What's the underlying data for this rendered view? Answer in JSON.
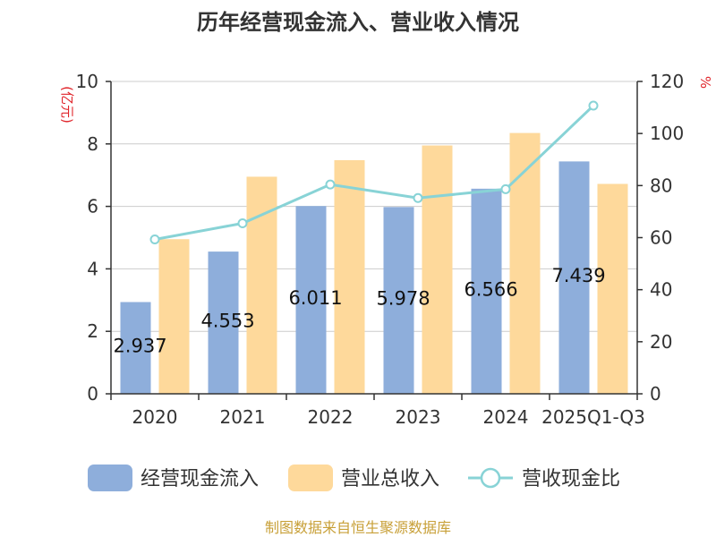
{
  "chart_data": {
    "type": "bar",
    "title": "历年经营现金流入、营业收入情况",
    "categories": [
      "2020",
      "2021",
      "2022",
      "2023",
      "2024",
      "2025Q1-Q3"
    ],
    "series": [
      {
        "name": "经营现金流入",
        "type": "bar",
        "axis": "left",
        "color": "#8eaedb",
        "values": [
          2.937,
          4.553,
          6.011,
          5.978,
          6.566,
          7.439
        ],
        "labels": [
          "2.937",
          "4.553",
          "6.011",
          "5.978",
          "6.566",
          "7.439"
        ]
      },
      {
        "name": "营业总收入",
        "type": "bar",
        "axis": "left",
        "color": "#fed99b",
        "values": [
          4.95,
          6.95,
          7.48,
          7.95,
          8.35,
          6.72
        ]
      },
      {
        "name": "营收现金比",
        "type": "line",
        "axis": "right",
        "color": "#88d3d6",
        "values": [
          59.3,
          65.5,
          80.4,
          75.2,
          78.6,
          110.7
        ]
      }
    ],
    "y_left": {
      "label": "(亿元)",
      "min": 0,
      "max": 10,
      "ticks": [
        "0",
        "2",
        "4",
        "6",
        "8",
        "10"
      ]
    },
    "y_right": {
      "label": "%",
      "min": 0,
      "max": 120,
      "ticks": [
        "0",
        "20",
        "40",
        "60",
        "80",
        "100",
        "120"
      ]
    },
    "grid": true,
    "legend_position": "bottom"
  },
  "source_text": "制图数据来自恒生聚源数据库",
  "colors": {
    "axis_unit": "#e0242a",
    "source": "#c8a038",
    "grid": "#cccccc"
  }
}
